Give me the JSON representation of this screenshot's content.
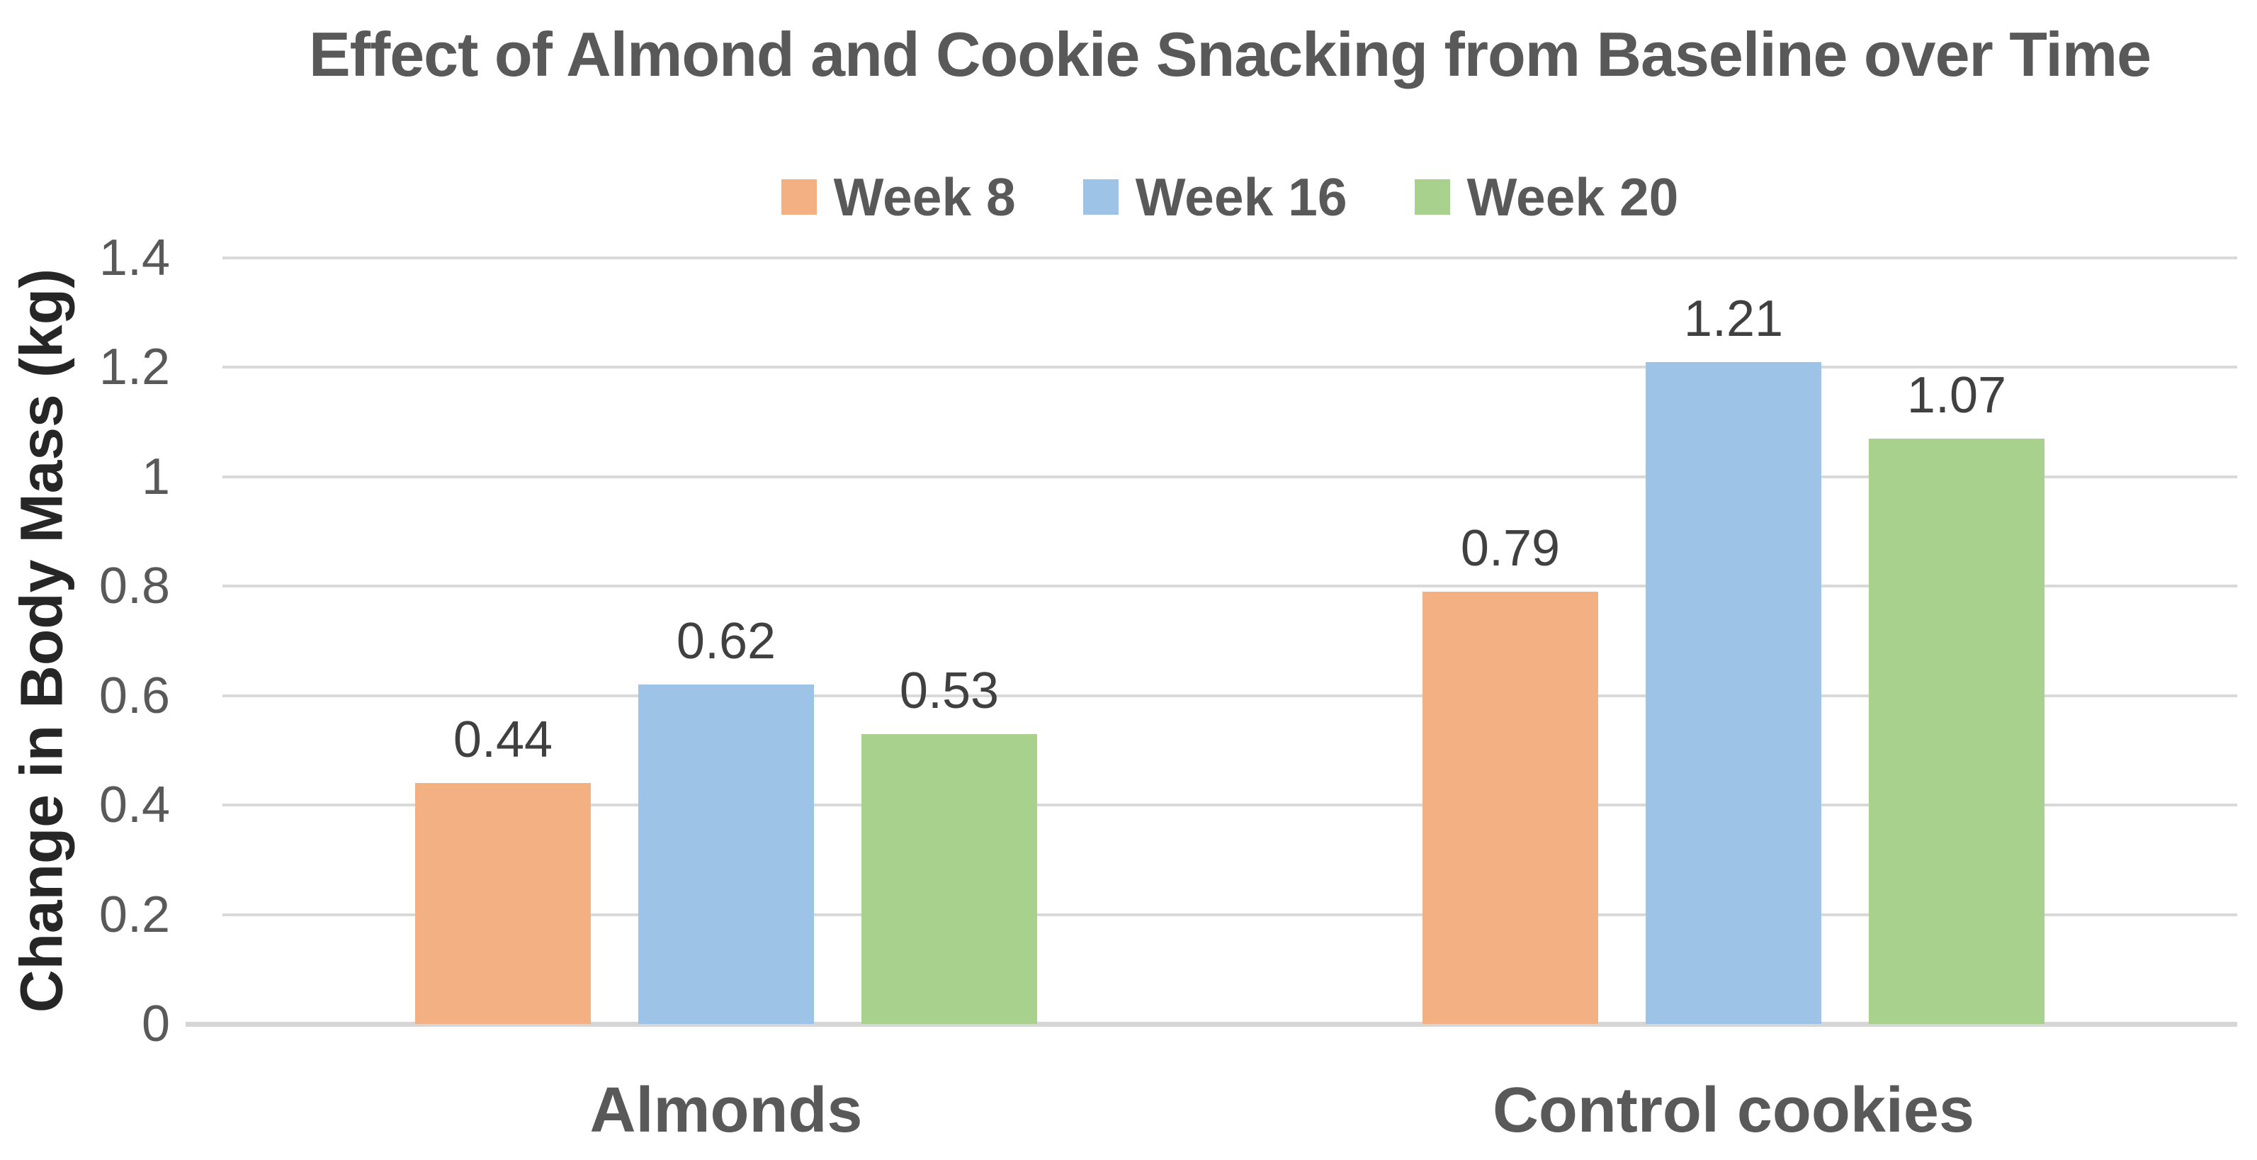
{
  "chart_data": {
    "type": "bar",
    "title": "Effect of Almond and Cookie Snacking from Baseline over Time",
    "ylabel": "Change in Body Mass (kg)",
    "xlabel": "",
    "categories": [
      "Almonds",
      "Control cookies"
    ],
    "series": [
      {
        "name": "Week 8",
        "color": "#F2B083",
        "values": [
          0.44,
          0.79
        ],
        "labels": [
          "0.44",
          "0.79"
        ]
      },
      {
        "name": "Week 16",
        "color": "#9DC3E6",
        "values": [
          0.62,
          1.21
        ],
        "labels": [
          "0.62",
          "1.21"
        ]
      },
      {
        "name": "Week 20",
        "color": "#A9D18E",
        "values": [
          0.53,
          1.07
        ],
        "labels": [
          "0.53",
          "1.07"
        ]
      }
    ],
    "ylim": [
      0,
      1.4
    ],
    "ytick_step": 0.2,
    "yticks": [
      "1.4",
      "1.2",
      "1",
      "0.8",
      "0.6",
      "0.4",
      "0.2",
      "0"
    ],
    "grid": true,
    "legend_position": "top-center",
    "data_labels": true
  },
  "colors": {
    "gridline": "#d9d9d9",
    "axis_line": "#d6d6d6",
    "title": "#595959",
    "tick_label": "#595959",
    "data_label": "#404040",
    "category_label": "#595959",
    "axis_title": "#262626"
  }
}
